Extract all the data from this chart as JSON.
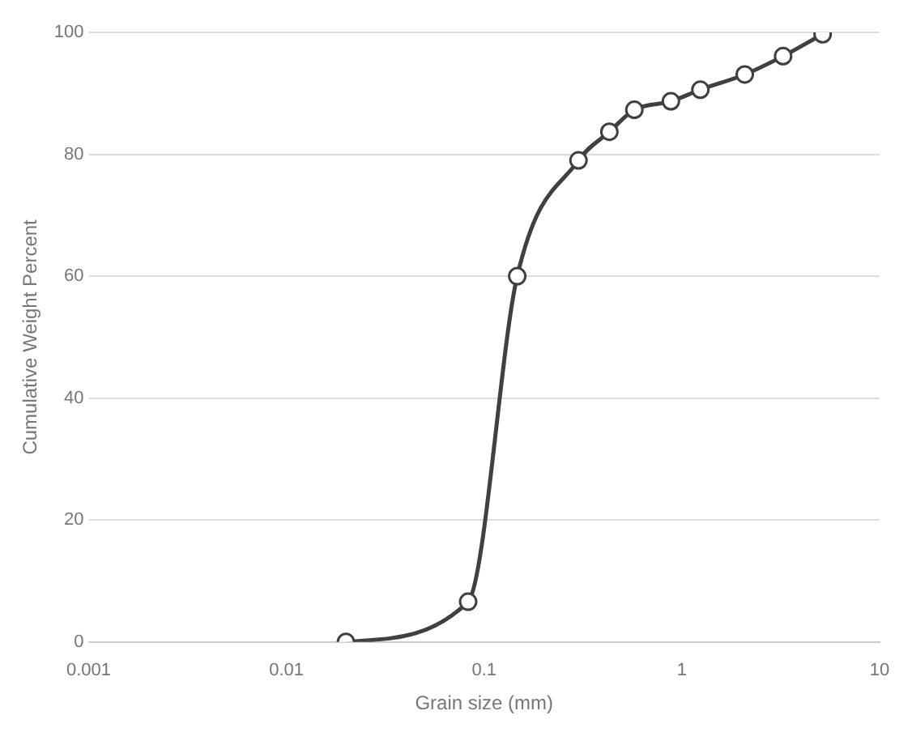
{
  "chart_data": {
    "type": "line",
    "xlabel": "Grain size (mm)",
    "ylabel": "Cumulative Weight Percent",
    "x": [
      0.02,
      0.083,
      0.147,
      0.3,
      0.43,
      0.575,
      0.88,
      1.24,
      2.08,
      3.25,
      5.15
    ],
    "series": [
      {
        "color": "#404040",
        "values": [
          0,
          6.6,
          60,
          79,
          83.7,
          87.3,
          88.7,
          90.6,
          93.1,
          96.1,
          99.7
        ]
      }
    ],
    "log": "x",
    "xlim": [
      0.001,
      10
    ],
    "xticks": [
      0.001,
      0.01,
      0.1,
      1,
      10
    ],
    "ylim": [
      0,
      100
    ],
    "yticks": [
      0,
      20,
      40,
      60,
      80,
      100
    ],
    "grid": "y",
    "legend": false,
    "marker": "circle",
    "line_style": "solid"
  }
}
